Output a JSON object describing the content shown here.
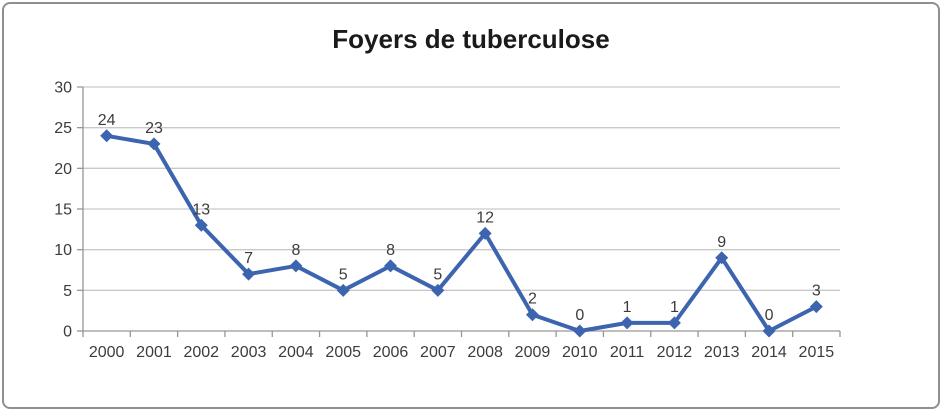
{
  "window": {
    "background": "#ffffff",
    "border_color": "#8f8f8f"
  },
  "chart_data": {
    "type": "line",
    "title": "Foyers de tuberculose",
    "categories": [
      "2000",
      "2001",
      "2002",
      "2003",
      "2004",
      "2005",
      "2006",
      "2007",
      "2008",
      "2009",
      "2010",
      "2011",
      "2012",
      "2013",
      "2014",
      "2015"
    ],
    "values": [
      24,
      23,
      13,
      7,
      8,
      5,
      8,
      5,
      12,
      2,
      0,
      1,
      1,
      9,
      0,
      3
    ],
    "xlabel": "",
    "ylabel": "",
    "ylim": [
      0,
      30
    ],
    "yticks": [
      0,
      5,
      10,
      15,
      20,
      25,
      30
    ],
    "grid": "horizontal",
    "legend": "none",
    "data_labels": "above",
    "marker": "diamond",
    "colors": {
      "series": "#3c64af",
      "gridline": "#c9c9c9",
      "axis": "#969696",
      "tick_label": "#3c3c3c",
      "data_label": "#3c3c3c",
      "title": "#1a1a1a"
    }
  }
}
